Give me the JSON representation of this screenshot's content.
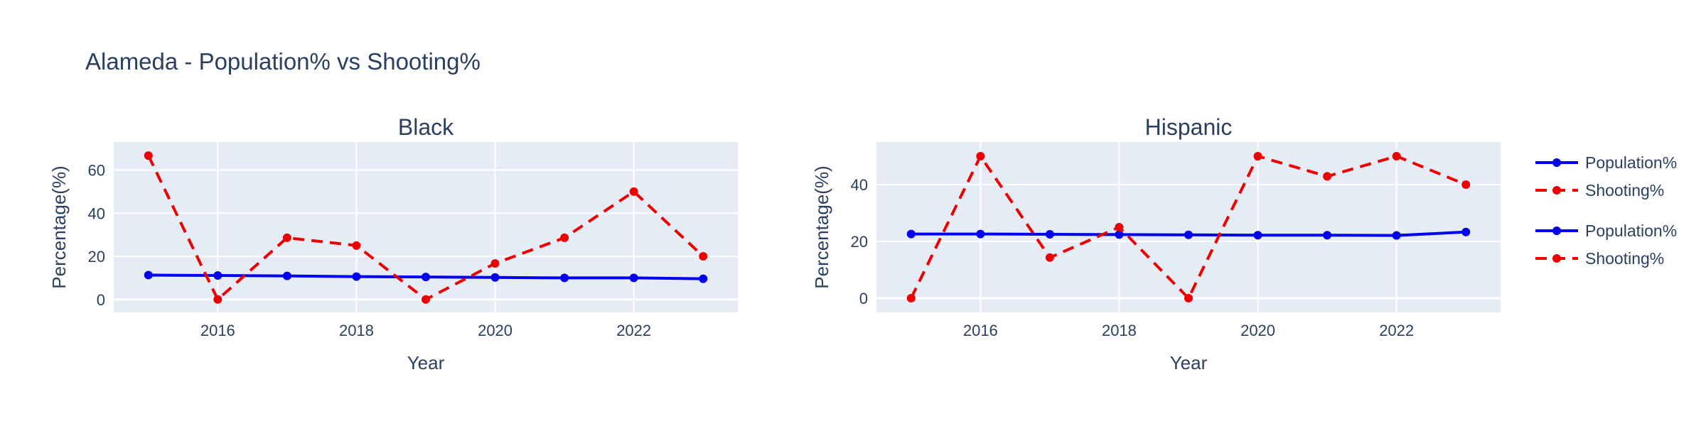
{
  "title": "Alameda - Population% vs Shooting%",
  "chart_data": [
    {
      "type": "line",
      "title": "Black",
      "xlabel": "Year",
      "ylabel": "Percentage(%)",
      "xlim": [
        2014.5,
        2023.5
      ],
      "ylim": [
        -6,
        73
      ],
      "x_ticks": [
        2016,
        2018,
        2020,
        2022
      ],
      "y_ticks": [
        0,
        20,
        40,
        60
      ],
      "grid": true,
      "x": [
        2015,
        2016,
        2017,
        2018,
        2019,
        2020,
        2021,
        2022,
        2023
      ],
      "series": [
        {
          "name": "Population%",
          "color": "#0000ee",
          "dash": "solid",
          "values": [
            11.3,
            11.1,
            10.9,
            10.6,
            10.4,
            10.2,
            10.0,
            10.0,
            9.6
          ]
        },
        {
          "name": "Shooting%",
          "color": "#ee0000",
          "dash": "dash",
          "values": [
            66.7,
            0,
            28.6,
            25.0,
            0,
            16.7,
            28.6,
            50.0,
            20.0
          ]
        }
      ]
    },
    {
      "type": "line",
      "title": "Hispanic",
      "xlabel": "Year",
      "ylabel": "Percentage(%)",
      "xlim": [
        2014.5,
        2023.5
      ],
      "ylim": [
        -5,
        55
      ],
      "x_ticks": [
        2016,
        2018,
        2020,
        2022
      ],
      "y_ticks": [
        0,
        20,
        40
      ],
      "grid": true,
      "x": [
        2015,
        2016,
        2017,
        2018,
        2019,
        2020,
        2021,
        2022,
        2023
      ],
      "series": [
        {
          "name": "Population%",
          "color": "#0000ee",
          "dash": "solid",
          "values": [
            22.6,
            22.6,
            22.5,
            22.4,
            22.3,
            22.2,
            22.2,
            22.1,
            23.3
          ]
        },
        {
          "name": "Shooting%",
          "color": "#ee0000",
          "dash": "dash",
          "values": [
            0,
            50.0,
            14.3,
            25.0,
            0,
            50.0,
            42.9,
            50.0,
            40.0
          ]
        }
      ]
    }
  ],
  "legend": {
    "position": "right",
    "items": [
      {
        "label": "Population%",
        "color": "#0000ee",
        "dash": "solid"
      },
      {
        "label": "Shooting%",
        "color": "#ee0000",
        "dash": "dash"
      },
      {
        "label": "Population%",
        "color": "#0000ee",
        "dash": "solid"
      },
      {
        "label": "Shooting%",
        "color": "#ee0000",
        "dash": "dash"
      }
    ]
  }
}
